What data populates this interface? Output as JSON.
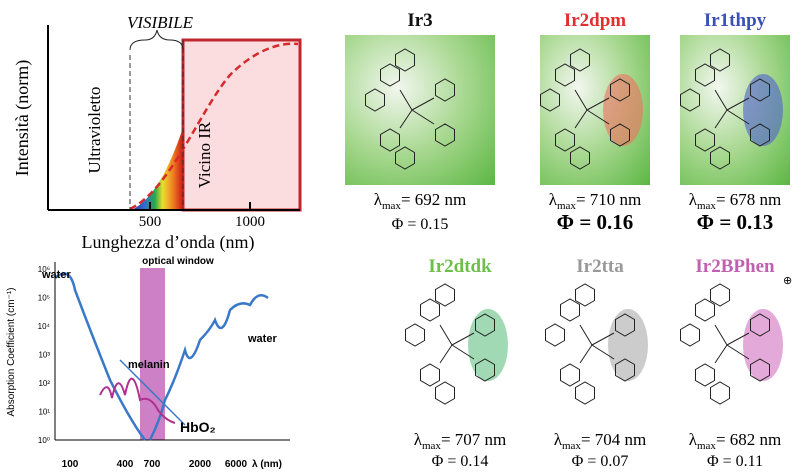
{
  "spectrum": {
    "title": "VISIBILE",
    "y_label": "Intensità (norm)",
    "x_label": "Lunghezza d’onda (nm)",
    "region_uv": "Ultravioletto",
    "region_ir": "Vicino IR",
    "xticks": [
      "500",
      "1000"
    ]
  },
  "absorption": {
    "y_label": "Absorption Coefficient (cm⁻¹)",
    "yticks": [
      "10⁰",
      "10¹",
      "10²",
      "10³",
      "10⁴",
      "10⁵",
      "10⁶"
    ],
    "xticks": [
      "100",
      "400",
      "700",
      "2000",
      "6000"
    ],
    "x_label": "λ (nm)",
    "band_label": "optical window",
    "curve_labels": [
      "water",
      "water",
      "melanin",
      "HbO₂"
    ]
  },
  "symbols": {
    "lambda": "λ",
    "max": "max"
  },
  "molecules": [
    {
      "name": "Ir3",
      "lambda_value": "= 692 nm",
      "phi": "Φ = 0.15"
    },
    {
      "name": "Ir2dpm",
      "lambda_value": "= 710 nm",
      "phi": "Φ = 0.16"
    },
    {
      "name": "Ir1thpy",
      "lambda_value": "= 678 nm",
      "phi": "Φ = 0.13"
    },
    {
      "name": "Ir2dtdk",
      "lambda_value": "= 707 nm",
      "phi": "Φ = 0.14"
    },
    {
      "name": "Ir2tta",
      "lambda_value": "= 704 nm",
      "phi": "Φ = 0.07"
    },
    {
      "name": "Ir2BPhen",
      "lambda_value": "= 682 nm",
      "phi": "Φ = 0.11",
      "charge": "⊕"
    }
  ]
}
